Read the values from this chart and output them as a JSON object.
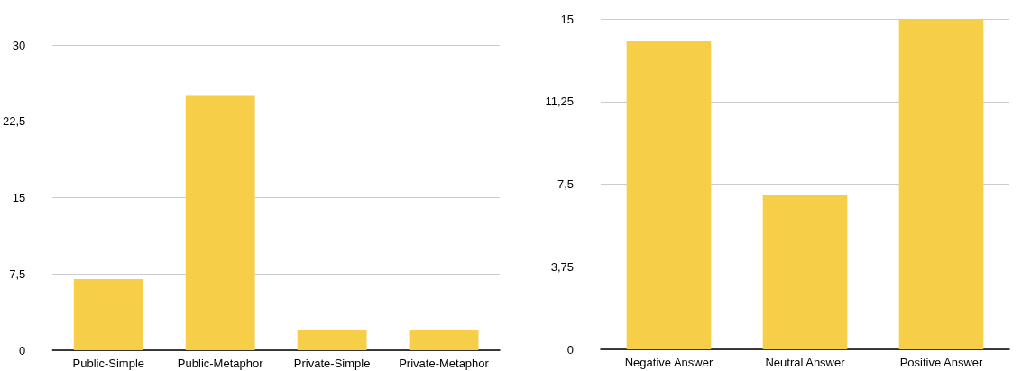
{
  "chart_data": [
    {
      "type": "bar",
      "categories": [
        "Public-Simple",
        "Public-Metaphor",
        "Private-Simple",
        "Private-Metaphor"
      ],
      "values": [
        7,
        25,
        2,
        2
      ],
      "color": "#f6ce47",
      "ylim": [
        0,
        30
      ],
      "yticks": [
        0,
        {
          "value": 7.5,
          "label": "7,5"
        },
        15,
        {
          "value": 22.5,
          "label": "22,5"
        },
        30
      ],
      "grid": "y"
    },
    {
      "type": "bar",
      "categories": [
        "Negative Answer",
        "Neutral Answer",
        "Positive Answer"
      ],
      "values": [
        14,
        7,
        15
      ],
      "color": "#f6ce47",
      "ylim": [
        0,
        15
      ],
      "yticks": [
        0,
        {
          "value": 3.75,
          "label": "3,75"
        },
        {
          "value": 7.5,
          "label": "7,5"
        },
        {
          "value": 11.25,
          "label": "11,25"
        },
        15
      ],
      "grid": "y"
    }
  ]
}
